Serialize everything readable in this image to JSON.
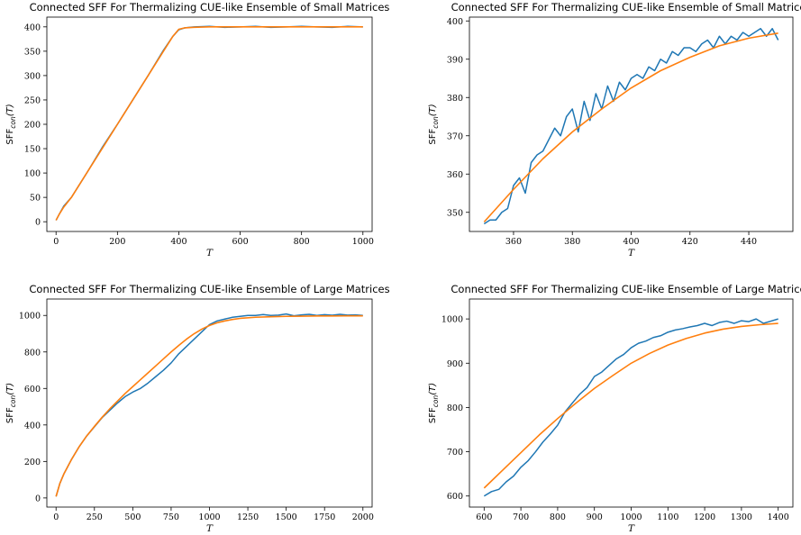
{
  "colors": {
    "data": "#1f77b4",
    "fit": "#ff7f0e"
  },
  "chart_data": [
    {
      "type": "line",
      "title": "Connected SFF For Thermalizing CUE-like Ensemble of Small Matrices",
      "xlabel": "T",
      "ylabel": "SFF",
      "ylabel_sub": "con",
      "ylabel_arg": "(T)",
      "xlim": [
        -30,
        1030
      ],
      "ylim": [
        -20,
        420
      ],
      "xticks": [
        0,
        200,
        400,
        600,
        800,
        1000
      ],
      "yticks": [
        0,
        50,
        100,
        150,
        200,
        250,
        300,
        350,
        400
      ],
      "series": [
        {
          "role": "data",
          "x": [
            0,
            10,
            25,
            50,
            100,
            150,
            200,
            250,
            300,
            350,
            380,
            400,
            420,
            450,
            500,
            550,
            600,
            650,
            700,
            750,
            800,
            850,
            900,
            950,
            1000
          ],
          "y": [
            3,
            15,
            32,
            50,
            100,
            152,
            200,
            250,
            300,
            352,
            380,
            394,
            398,
            400,
            401,
            399,
            400,
            401,
            399,
            400,
            401,
            400,
            399,
            401,
            400
          ]
        },
        {
          "role": "fit",
          "x": [
            0,
            10,
            25,
            50,
            100,
            150,
            200,
            250,
            300,
            350,
            380,
            400,
            420,
            450,
            500,
            600,
            700,
            800,
            900,
            1000
          ],
          "y": [
            3,
            15,
            30,
            50,
            100,
            150,
            200,
            250,
            300,
            350,
            380,
            395,
            398,
            399,
            400,
            400,
            400,
            400,
            400,
            400
          ]
        }
      ]
    },
    {
      "type": "line",
      "title": "Connected SFF For Thermalizing CUE-like Ensemble of Small Matrices",
      "xlabel": "T",
      "ylabel": "SFF",
      "ylabel_sub": "con",
      "ylabel_arg": "(T)",
      "xlim": [
        345,
        455
      ],
      "ylim": [
        345,
        401
      ],
      "xticks": [
        360,
        380,
        400,
        420,
        440
      ],
      "yticks": [
        350,
        360,
        370,
        380,
        390,
        400
      ],
      "series": [
        {
          "role": "data",
          "x": [
            350,
            352,
            354,
            356,
            358,
            360,
            362,
            364,
            366,
            368,
            370,
            372,
            374,
            376,
            378,
            380,
            382,
            384,
            386,
            388,
            390,
            392,
            394,
            396,
            398,
            400,
            402,
            404,
            406,
            408,
            410,
            412,
            414,
            416,
            418,
            420,
            422,
            424,
            426,
            428,
            430,
            432,
            434,
            436,
            438,
            440,
            442,
            444,
            446,
            448,
            450
          ],
          "y": [
            347,
            348,
            348,
            350,
            351,
            357,
            359,
            355,
            363,
            365,
            366,
            369,
            372,
            370,
            375,
            377,
            371,
            379,
            374,
            381,
            377,
            383,
            379,
            384,
            382,
            385,
            386,
            385,
            388,
            387,
            390,
            389,
            392,
            391,
            393,
            393,
            392,
            394,
            395,
            393,
            396,
            394,
            396,
            395,
            397,
            396,
            397,
            398,
            396,
            398,
            395
          ]
        },
        {
          "role": "fit",
          "x": [
            350,
            360,
            370,
            380,
            390,
            400,
            410,
            420,
            430,
            440,
            450
          ],
          "y": [
            347.5,
            356,
            364,
            371,
            377,
            382.5,
            387,
            390.5,
            393.5,
            395.5,
            396.8
          ]
        }
      ]
    },
    {
      "type": "line",
      "title": "Connected SFF For Thermalizing CUE-like Ensemble of Large Matrices",
      "xlabel": "T",
      "ylabel": "SFF",
      "ylabel_sub": "con",
      "ylabel_arg": "(T)",
      "xlim": [
        -60,
        2060
      ],
      "ylim": [
        -50,
        1090
      ],
      "xticks": [
        0,
        250,
        500,
        750,
        1000,
        1250,
        1500,
        1750,
        2000
      ],
      "yticks": [
        0,
        200,
        400,
        600,
        800,
        1000
      ],
      "series": [
        {
          "role": "data",
          "x": [
            0,
            25,
            50,
            100,
            150,
            200,
            250,
            300,
            350,
            400,
            450,
            500,
            550,
            600,
            650,
            700,
            750,
            800,
            850,
            900,
            950,
            1000,
            1050,
            1100,
            1150,
            1200,
            1250,
            1300,
            1350,
            1400,
            1450,
            1500,
            1550,
            1600,
            1650,
            1700,
            1750,
            1800,
            1850,
            1900,
            1950,
            2000
          ],
          "y": [
            8,
            80,
            130,
            210,
            280,
            340,
            390,
            440,
            480,
            520,
            555,
            580,
            600,
            630,
            665,
            700,
            740,
            790,
            830,
            870,
            910,
            950,
            970,
            980,
            990,
            995,
            1000,
            1000,
            1005,
            1000,
            1002,
            1008,
            998,
            1003,
            1006,
            1000,
            1004,
            1001,
            1006,
            1002,
            1003,
            1000
          ]
        },
        {
          "role": "fit",
          "x": [
            0,
            25,
            50,
            100,
            150,
            200,
            250,
            300,
            350,
            400,
            450,
            500,
            550,
            600,
            650,
            700,
            750,
            800,
            850,
            900,
            950,
            1000,
            1050,
            1100,
            1150,
            1200,
            1300,
            1400,
            1500,
            1600,
            1700,
            1800,
            1900,
            2000
          ],
          "y": [
            8,
            80,
            130,
            210,
            280,
            340,
            392,
            442,
            488,
            530,
            572,
            610,
            648,
            686,
            724,
            762,
            800,
            836,
            870,
            900,
            925,
            945,
            960,
            970,
            978,
            984,
            990,
            993,
            995,
            996,
            997,
            997,
            998,
            998
          ]
        }
      ]
    },
    {
      "type": "line",
      "title": "Connected SFF For Thermalizing CUE-like Ensemble of Large Matrices",
      "xlabel": "T",
      "ylabel": "SFF",
      "ylabel_sub": "con",
      "ylabel_arg": "(T)",
      "xlim": [
        560,
        1440
      ],
      "ylim": [
        575,
        1045
      ],
      "xticks": [
        600,
        700,
        800,
        900,
        1000,
        1100,
        1200,
        1300,
        1400
      ],
      "yticks": [
        600,
        700,
        800,
        900,
        1000
      ],
      "series": [
        {
          "role": "data",
          "x": [
            600,
            620,
            640,
            660,
            680,
            700,
            720,
            740,
            760,
            780,
            800,
            820,
            840,
            860,
            880,
            900,
            920,
            940,
            960,
            980,
            1000,
            1020,
            1040,
            1060,
            1080,
            1100,
            1120,
            1140,
            1160,
            1180,
            1200,
            1220,
            1240,
            1260,
            1280,
            1300,
            1320,
            1340,
            1360,
            1380,
            1400
          ],
          "y": [
            600,
            610,
            615,
            632,
            645,
            665,
            680,
            700,
            722,
            740,
            760,
            790,
            810,
            830,
            845,
            870,
            880,
            895,
            910,
            920,
            935,
            945,
            950,
            958,
            962,
            970,
            975,
            978,
            982,
            985,
            990,
            985,
            992,
            995,
            990,
            996,
            994,
            1000,
            990,
            995,
            1000
          ]
        },
        {
          "role": "fit",
          "x": [
            600,
            650,
            700,
            750,
            800,
            850,
            900,
            950,
            1000,
            1050,
            1100,
            1150,
            1200,
            1250,
            1300,
            1350,
            1400
          ],
          "y": [
            618,
            658,
            698,
            738,
            775,
            810,
            843,
            872,
            900,
            922,
            941,
            956,
            968,
            977,
            983,
            987,
            990
          ]
        }
      ]
    }
  ]
}
